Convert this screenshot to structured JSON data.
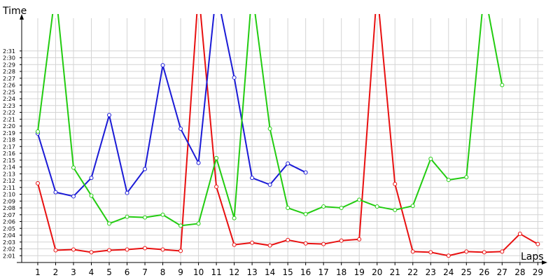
{
  "chart_data": {
    "type": "line",
    "xlabel": "Laps",
    "ylabel": "Time",
    "grid": true,
    "x": [
      1,
      2,
      3,
      4,
      5,
      6,
      7,
      8,
      9,
      10,
      11,
      12,
      13,
      14,
      15,
      16,
      17,
      18,
      19,
      20,
      21,
      22,
      23,
      24,
      25,
      26,
      27,
      28,
      29
    ],
    "xlim": [
      0.1,
      29.3
    ],
    "ylim_seconds": [
      120,
      155.8
    ],
    "yticks": [
      "2:01",
      "2:02",
      "2:03",
      "2:04",
      "2:05",
      "2:06",
      "2:07",
      "2:08",
      "2:09",
      "2:10",
      "2:11",
      "2:12",
      "2:13",
      "2:14",
      "2:15",
      "2:16",
      "2:17",
      "2:18",
      "2:19",
      "2:20",
      "2:21",
      "2:22",
      "2:23",
      "2:24",
      "2:25",
      "2:26",
      "2:27",
      "2:28",
      "2:29",
      "2:30",
      "2:31"
    ],
    "series": [
      {
        "color": "#e81010",
        "values_seconds": [
          131.6,
          121.8,
          121.9,
          121.5,
          121.8,
          121.9,
          122.1,
          121.9,
          121.7,
          null,
          131.1,
          122.6,
          122.9,
          122.5,
          123.3,
          122.8,
          122.7,
          123.2,
          123.4,
          null,
          131.5,
          121.6,
          121.5,
          121.0,
          121.6,
          121.5,
          121.6,
          124.2,
          122.7
        ]
      },
      {
        "color": "#1a1ad6",
        "values_seconds": [
          138.9,
          130.3,
          129.7,
          132.4,
          141.6,
          130.2,
          133.7,
          148.9,
          139.6,
          134.6,
          null,
          147.1,
          132.4,
          131.4,
          134.5,
          133.2,
          null,
          null,
          null,
          null,
          null,
          null,
          null,
          null,
          null,
          null,
          null,
          null,
          null
        ]
      },
      {
        "color": "#22cc10",
        "values_seconds": [
          139.2,
          null,
          133.9,
          129.8,
          125.7,
          126.7,
          126.6,
          127.0,
          125.4,
          125.7,
          135.3,
          126.5,
          null,
          139.6,
          128.0,
          127.1,
          128.2,
          128.0,
          129.2,
          128.2,
          127.7,
          128.3,
          135.2,
          132.1,
          132.5,
          null,
          146.0,
          null,
          null
        ]
      }
    ]
  }
}
